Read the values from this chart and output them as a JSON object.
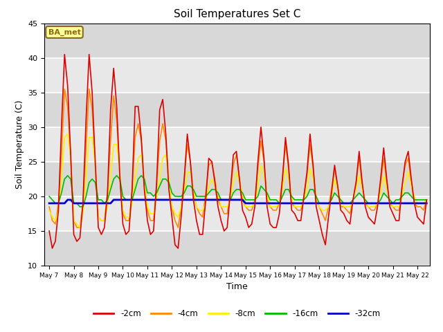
{
  "title": "Soil Temperatures Set C",
  "xlabel": "Time",
  "ylabel": "Soil Temperature (C)",
  "ylim": [
    10,
    45
  ],
  "background_color": "#ffffff",
  "plot_bg_color": "#e8e8e8",
  "annotation_text": "BA_met",
  "annotation_bg": "#ffff99",
  "annotation_border": "#8B6914",
  "xtick_labels": [
    "May 7",
    "May 8",
    "May 9",
    "May 10",
    "May 11",
    "May 12",
    "May 13",
    "May 14",
    "May 15",
    "May 16",
    "May 17",
    "May 18",
    "May 19",
    "May 20",
    "May 21",
    "May 22"
  ],
  "series": {
    "-2cm": {
      "color": "#dd0000",
      "lw": 1.2
    },
    "-4cm": {
      "color": "#ff8800",
      "lw": 1.2
    },
    "-8cm": {
      "color": "#ffee00",
      "lw": 1.2
    },
    "-16cm": {
      "color": "#00bb00",
      "lw": 1.2
    },
    "-32cm": {
      "color": "#0000cc",
      "lw": 2.0
    }
  },
  "t": [
    0,
    0.125,
    0.25,
    0.375,
    0.5,
    0.625,
    0.75,
    0.875,
    1,
    1.125,
    1.25,
    1.375,
    1.5,
    1.625,
    1.75,
    1.875,
    2,
    2.125,
    2.25,
    2.375,
    2.5,
    2.625,
    2.75,
    2.875,
    3,
    3.125,
    3.25,
    3.375,
    3.5,
    3.625,
    3.75,
    3.875,
    4,
    4.125,
    4.25,
    4.375,
    4.5,
    4.625,
    4.75,
    4.875,
    5,
    5.125,
    5.25,
    5.375,
    5.5,
    5.625,
    5.75,
    5.875,
    6,
    6.125,
    6.25,
    6.375,
    6.5,
    6.625,
    6.75,
    6.875,
    7,
    7.125,
    7.25,
    7.375,
    7.5,
    7.625,
    7.75,
    7.875,
    8,
    8.125,
    8.25,
    8.375,
    8.5,
    8.625,
    8.75,
    8.875,
    9,
    9.125,
    9.25,
    9.375,
    9.5,
    9.625,
    9.75,
    9.875,
    10,
    10.125,
    10.25,
    10.375,
    10.5,
    10.625,
    10.75,
    10.875,
    11,
    11.125,
    11.25,
    11.375,
    11.5,
    11.625,
    11.75,
    11.875,
    12,
    12.125,
    12.25,
    12.375,
    12.5,
    12.625,
    12.75,
    12.875,
    13,
    13.125,
    13.25,
    13.375,
    13.5,
    13.625,
    13.75,
    13.875,
    14,
    14.125,
    14.25,
    14.375,
    14.5,
    14.625,
    14.75,
    14.875,
    15,
    15.125,
    15.25,
    15.375
  ],
  "v2cm": [
    15.0,
    12.5,
    13.5,
    18.0,
    30.0,
    40.5,
    36.0,
    26.0,
    14.5,
    13.5,
    14.0,
    19.0,
    31.0,
    40.5,
    35.0,
    25.0,
    15.5,
    14.5,
    15.5,
    20.5,
    32.5,
    38.5,
    33.0,
    23.0,
    16.0,
    14.5,
    15.0,
    21.0,
    33.0,
    33.0,
    28.5,
    21.0,
    16.5,
    14.5,
    15.0,
    22.0,
    32.5,
    34.0,
    29.0,
    21.0,
    17.0,
    13.0,
    12.5,
    17.0,
    22.5,
    29.0,
    25.0,
    19.5,
    16.5,
    14.5,
    14.5,
    19.5,
    25.5,
    25.0,
    22.0,
    18.5,
    16.5,
    15.0,
    15.5,
    20.5,
    26.0,
    26.5,
    22.5,
    18.0,
    17.0,
    15.5,
    16.0,
    18.5,
    25.0,
    30.0,
    25.5,
    18.5,
    16.0,
    15.5,
    15.5,
    17.5,
    22.5,
    28.5,
    24.5,
    18.0,
    17.5,
    16.5,
    16.5,
    20.0,
    23.5,
    29.0,
    24.5,
    18.5,
    16.5,
    14.5,
    13.0,
    17.0,
    20.5,
    24.5,
    21.5,
    18.0,
    17.5,
    16.5,
    16.0,
    19.5,
    22.0,
    26.5,
    22.0,
    18.5,
    17.0,
    16.5,
    16.0,
    18.5,
    22.5,
    27.0,
    22.5,
    18.5,
    17.5,
    16.5,
    16.5,
    21.5,
    25.0,
    26.5,
    22.5,
    19.0,
    17.0,
    16.5,
    16.0,
    19.5
  ],
  "v4cm": [
    18.5,
    16.5,
    16.0,
    19.0,
    26.0,
    35.5,
    33.0,
    25.5,
    16.5,
    15.5,
    15.5,
    19.0,
    27.0,
    35.5,
    32.5,
    24.5,
    17.0,
    16.5,
    16.5,
    20.5,
    28.0,
    34.5,
    31.0,
    23.0,
    17.5,
    16.5,
    16.5,
    20.5,
    28.5,
    30.5,
    28.0,
    21.5,
    18.0,
    16.5,
    16.5,
    21.5,
    28.0,
    30.5,
    28.0,
    21.5,
    18.5,
    16.5,
    15.5,
    18.5,
    22.5,
    27.5,
    25.0,
    20.5,
    18.5,
    17.5,
    17.0,
    20.5,
    24.5,
    25.0,
    22.5,
    19.5,
    18.5,
    17.5,
    17.5,
    20.5,
    24.5,
    26.0,
    22.5,
    19.5,
    18.5,
    18.0,
    18.0,
    19.5,
    24.0,
    28.0,
    25.0,
    19.5,
    18.5,
    18.0,
    18.0,
    19.0,
    22.5,
    27.5,
    24.0,
    19.0,
    18.5,
    18.0,
    18.0,
    20.0,
    23.0,
    27.5,
    24.0,
    19.5,
    18.5,
    17.5,
    16.5,
    18.5,
    21.0,
    24.0,
    21.5,
    18.5,
    18.5,
    18.0,
    17.5,
    19.5,
    22.0,
    25.5,
    21.5,
    19.0,
    18.5,
    18.0,
    18.0,
    19.0,
    22.0,
    25.5,
    22.0,
    19.0,
    18.5,
    18.0,
    18.0,
    21.5,
    24.5,
    25.5,
    22.0,
    19.0,
    18.5,
    18.5,
    18.0,
    19.5
  ],
  "v8cm": [
    18.0,
    17.0,
    16.5,
    18.0,
    22.5,
    28.5,
    29.0,
    25.5,
    16.5,
    16.0,
    15.5,
    17.5,
    22.5,
    28.5,
    28.5,
    24.5,
    17.0,
    16.5,
    16.5,
    18.5,
    22.5,
    27.5,
    27.5,
    23.5,
    18.0,
    17.0,
    17.0,
    19.0,
    22.5,
    25.5,
    26.0,
    22.5,
    18.5,
    17.5,
    17.5,
    19.5,
    22.5,
    25.5,
    26.0,
    22.5,
    18.5,
    17.5,
    17.0,
    18.5,
    20.5,
    23.5,
    23.5,
    21.0,
    18.5,
    18.0,
    18.0,
    19.0,
    21.5,
    22.5,
    21.5,
    20.5,
    18.5,
    18.5,
    18.5,
    19.5,
    22.0,
    23.5,
    22.0,
    20.5,
    18.5,
    18.5,
    18.5,
    19.0,
    21.5,
    24.5,
    23.0,
    20.5,
    18.5,
    18.5,
    18.5,
    19.0,
    21.0,
    24.0,
    22.5,
    20.0,
    18.5,
    18.5,
    18.5,
    19.5,
    21.0,
    24.0,
    22.5,
    20.0,
    18.5,
    18.0,
    18.0,
    18.5,
    20.0,
    22.5,
    21.0,
    19.5,
    18.5,
    18.5,
    18.5,
    19.5,
    21.0,
    23.0,
    21.0,
    19.5,
    18.5,
    18.5,
    18.5,
    19.0,
    20.5,
    23.0,
    21.0,
    19.5,
    18.5,
    18.5,
    18.5,
    20.0,
    22.0,
    23.5,
    21.5,
    20.0,
    19.0,
    19.0,
    19.0,
    19.5
  ],
  "v16cm": [
    20.0,
    19.5,
    19.0,
    19.0,
    20.5,
    22.5,
    23.0,
    22.5,
    19.0,
    19.0,
    18.5,
    18.5,
    20.0,
    22.0,
    22.5,
    22.0,
    19.5,
    19.5,
    19.0,
    19.5,
    21.0,
    22.5,
    23.0,
    22.5,
    20.0,
    19.5,
    19.5,
    19.5,
    21.0,
    22.5,
    23.0,
    22.5,
    20.5,
    20.5,
    20.0,
    20.5,
    21.5,
    22.5,
    22.5,
    22.0,
    20.5,
    20.0,
    20.0,
    20.0,
    20.5,
    21.5,
    21.5,
    21.0,
    20.0,
    20.0,
    20.0,
    20.0,
    20.5,
    21.0,
    21.0,
    20.5,
    19.5,
    19.5,
    19.5,
    19.5,
    20.5,
    21.0,
    21.0,
    20.5,
    19.5,
    19.5,
    19.5,
    19.5,
    20.0,
    21.5,
    21.0,
    20.5,
    19.5,
    19.5,
    19.5,
    19.0,
    20.0,
    21.0,
    21.0,
    20.0,
    19.5,
    19.5,
    19.5,
    19.5,
    20.0,
    21.0,
    21.0,
    20.0,
    19.0,
    19.0,
    19.0,
    19.0,
    19.5,
    20.5,
    20.0,
    19.5,
    19.0,
    19.0,
    19.0,
    19.5,
    20.0,
    20.5,
    20.0,
    19.5,
    19.0,
    19.0,
    19.0,
    19.0,
    19.5,
    20.5,
    20.0,
    19.5,
    19.0,
    19.5,
    19.5,
    20.0,
    20.5,
    20.5,
    20.0,
    19.5,
    19.5,
    19.5,
    19.5,
    19.5
  ],
  "v32cm": [
    19.0,
    19.0,
    19.0,
    19.0,
    19.0,
    19.0,
    19.5,
    19.5,
    19.0,
    19.0,
    19.0,
    19.0,
    19.0,
    19.0,
    19.0,
    19.0,
    19.0,
    19.0,
    19.0,
    19.0,
    19.0,
    19.5,
    19.5,
    19.5,
    19.5,
    19.5,
    19.5,
    19.5,
    19.5,
    19.5,
    19.5,
    19.5,
    19.5,
    19.5,
    19.5,
    19.5,
    19.5,
    19.5,
    19.5,
    19.5,
    19.5,
    19.5,
    19.5,
    19.5,
    19.5,
    19.5,
    19.5,
    19.5,
    19.5,
    19.5,
    19.5,
    19.5,
    19.5,
    19.5,
    19.5,
    19.5,
    19.5,
    19.5,
    19.5,
    19.5,
    19.5,
    19.5,
    19.5,
    19.5,
    19.0,
    19.0,
    19.0,
    19.0,
    19.0,
    19.0,
    19.0,
    19.0,
    19.0,
    19.0,
    19.0,
    19.0,
    19.0,
    19.0,
    19.0,
    19.0,
    19.0,
    19.0,
    19.0,
    19.0,
    19.0,
    19.0,
    19.0,
    19.0,
    19.0,
    19.0,
    19.0,
    19.0,
    19.0,
    19.0,
    19.0,
    19.0,
    19.0,
    19.0,
    19.0,
    19.0,
    19.0,
    19.0,
    19.0,
    19.0,
    19.0,
    19.0,
    19.0,
    19.0,
    19.0,
    19.0,
    19.0,
    19.0,
    19.0,
    19.0,
    19.0,
    19.0,
    19.0,
    19.0,
    19.0,
    19.0,
    19.0,
    19.0,
    19.0,
    19.0
  ]
}
